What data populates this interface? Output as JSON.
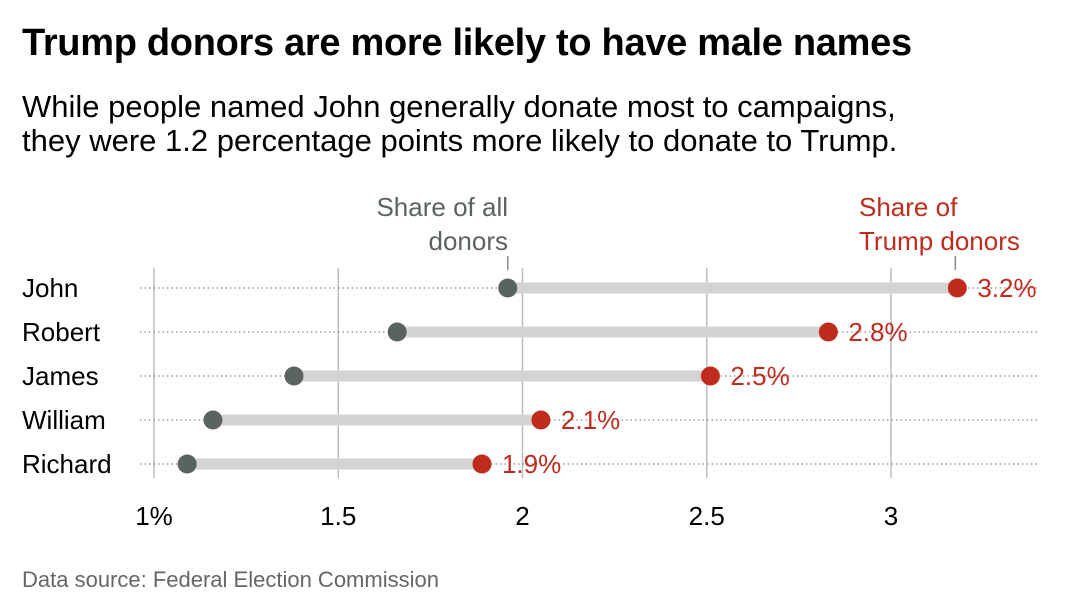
{
  "header": {
    "title": "Trump donors are more likely to have male names",
    "subtitle_line1": "While people named John generally donate most to campaigns,",
    "subtitle_line2": "they were 1.2 percentage points more likely to donate to Trump."
  },
  "footer": {
    "source": "Data source: Federal Election Commission"
  },
  "colors": {
    "all_donors": "#5b6360",
    "trump_donors": "#bf2c1e",
    "bar": "#d3d3d3"
  },
  "chart_data": {
    "type": "dumbbell",
    "title": "Trump donors are more likely to have male names",
    "categories": [
      "John",
      "Robert",
      "James",
      "William",
      "Richard"
    ],
    "series": [
      {
        "name": "Share of all donors",
        "label_lines": [
          "Share of all",
          "donors"
        ],
        "values": [
          1.96,
          1.66,
          1.38,
          1.16,
          1.09
        ]
      },
      {
        "name": "Share of Trump donors",
        "label_lines": [
          "Share of",
          "Trump donors"
        ],
        "values": [
          3.18,
          2.83,
          2.51,
          2.05,
          1.89
        ],
        "data_labels": [
          "3.2%",
          "2.8%",
          "2.5%",
          "2.1%",
          "1.9%"
        ]
      }
    ],
    "xlim": [
      1,
      3.35
    ],
    "ticks": [
      1,
      1.5,
      2,
      2.5,
      3
    ],
    "tick_labels": [
      "1%",
      "1.5",
      "2",
      "2.5",
      "3"
    ],
    "xlabel": "",
    "ylabel": ""
  }
}
